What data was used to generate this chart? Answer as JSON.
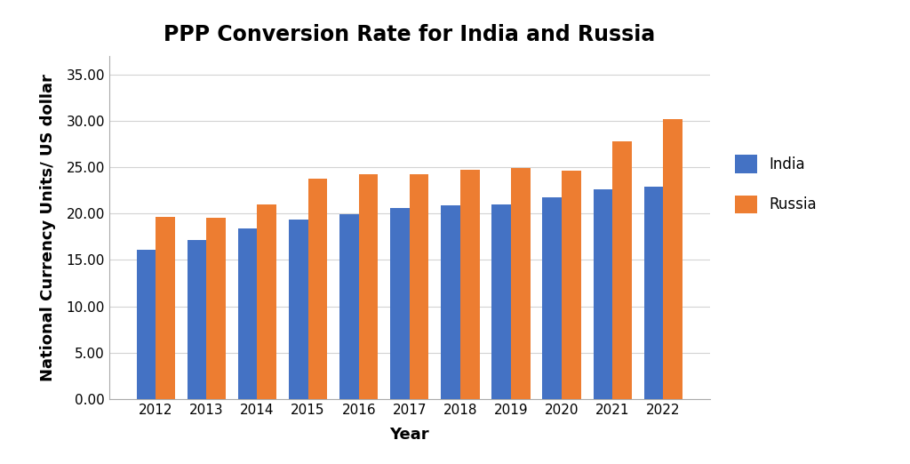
{
  "title": "PPP Conversion Rate for India and Russia",
  "xlabel": "Year",
  "ylabel": "National Currency Units/ US dollar",
  "years": [
    2012,
    2013,
    2014,
    2015,
    2016,
    2017,
    2018,
    2019,
    2020,
    2021,
    2022
  ],
  "india": [
    16.1,
    17.1,
    18.4,
    19.3,
    19.9,
    20.6,
    20.9,
    21.0,
    21.7,
    22.6,
    22.9
  ],
  "russia": [
    19.6,
    19.5,
    21.0,
    23.7,
    24.2,
    24.2,
    24.7,
    24.9,
    24.6,
    27.8,
    30.2
  ],
  "india_color": "#4472C4",
  "russia_color": "#ED7D31",
  "background_color": "#FFFFFF",
  "ylim": [
    0,
    37
  ],
  "yticks": [
    0.0,
    5.0,
    10.0,
    15.0,
    20.0,
    25.0,
    30.0,
    35.0
  ],
  "bar_width": 0.38,
  "title_fontsize": 17,
  "label_fontsize": 13,
  "tick_fontsize": 11,
  "legend_fontsize": 12
}
